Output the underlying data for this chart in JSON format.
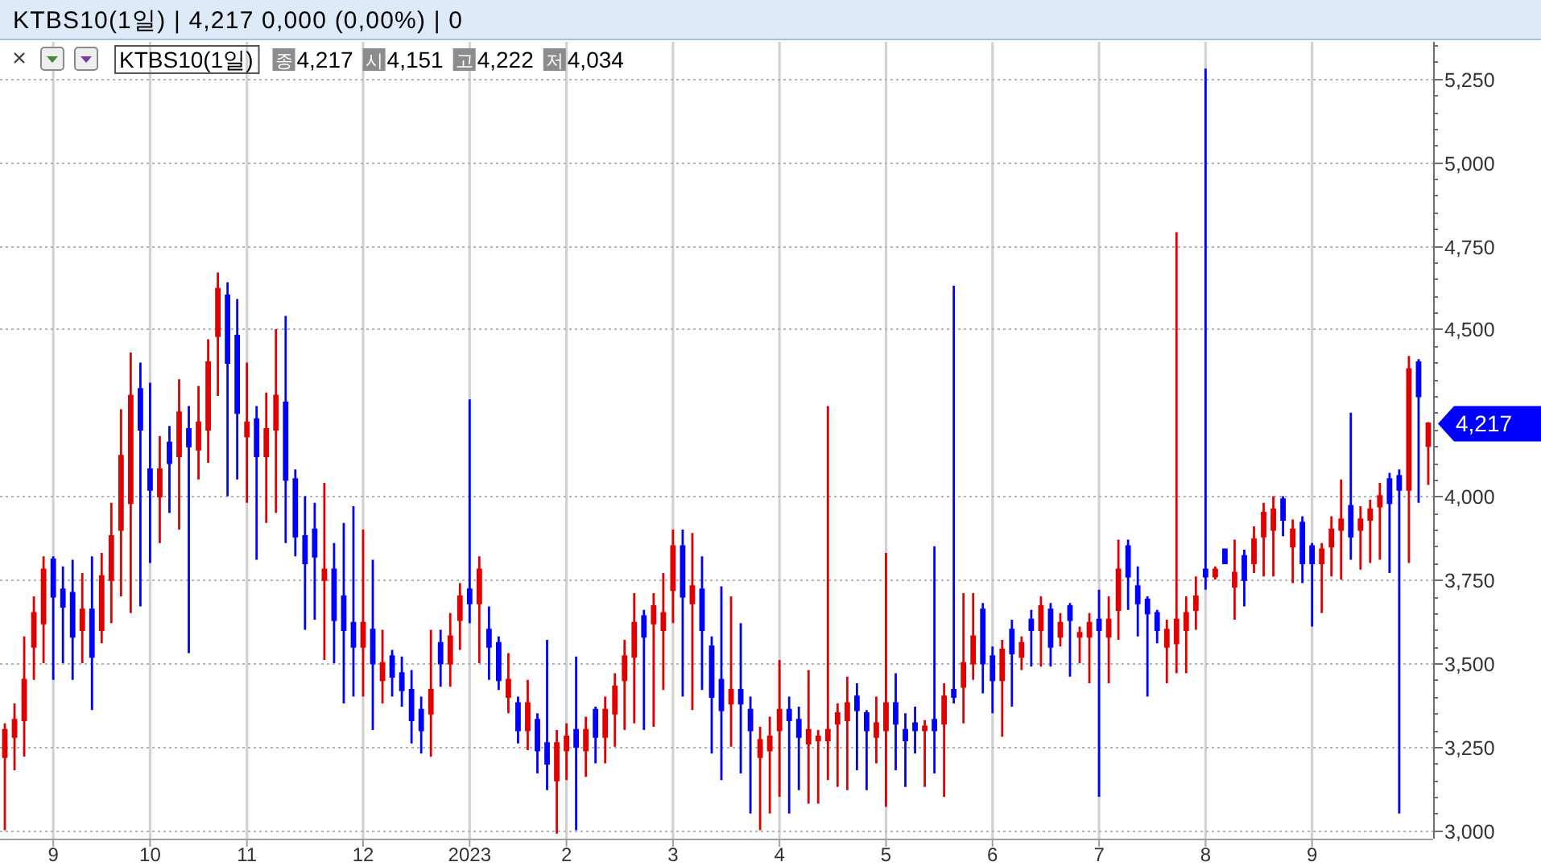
{
  "chart_data": {
    "type": "candlestick",
    "title": "KTBS10(1일) | 4,217 0,000 (0,00%) | 0",
    "categories": [
      null,
      null,
      null,
      null,
      null,
      "9",
      null,
      null,
      null,
      null,
      null,
      null,
      null,
      null,
      null,
      "10",
      null,
      null,
      null,
      null,
      null,
      null,
      null,
      null,
      null,
      "11",
      null,
      null,
      null,
      null,
      null,
      null,
      null,
      null,
      null,
      null,
      null,
      "12",
      null,
      null,
      null,
      null,
      null,
      null,
      null,
      null,
      null,
      null,
      "2023",
      null,
      null,
      null,
      null,
      null,
      null,
      null,
      null,
      null,
      "2",
      null,
      null,
      null,
      null,
      null,
      null,
      null,
      null,
      null,
      null,
      "3",
      null,
      null,
      null,
      null,
      null,
      null,
      null,
      null,
      null,
      null,
      "4",
      null,
      null,
      null,
      null,
      null,
      null,
      null,
      null,
      null,
      null,
      "5",
      null,
      null,
      null,
      null,
      null,
      null,
      null,
      null,
      null,
      null,
      "6",
      null,
      null,
      null,
      null,
      null,
      null,
      null,
      null,
      null,
      null,
      "7",
      null,
      null,
      null,
      null,
      null,
      null,
      null,
      null,
      null,
      null,
      "8",
      null,
      null,
      null,
      null,
      null,
      null,
      null,
      null,
      null,
      null,
      "9",
      null,
      null,
      null,
      null,
      null,
      null,
      null,
      null,
      null,
      null,
      null,
      null
    ],
    "series": [
      {
        "name": "KTBS10(1일)",
        "ohlc": [
          [
            3220,
            3320,
            3000,
            3300
          ],
          [
            3280,
            3380,
            3180,
            3330
          ],
          [
            3330,
            3580,
            3220,
            3450
          ],
          [
            3550,
            3700,
            3450,
            3650
          ],
          [
            3620,
            3820,
            3500,
            3780
          ],
          [
            3810,
            3820,
            3450,
            3700
          ],
          [
            3720,
            3790,
            3500,
            3670
          ],
          [
            3710,
            3810,
            3450,
            3580
          ],
          [
            3600,
            3770,
            3500,
            3660
          ],
          [
            3660,
            3820,
            3360,
            3520
          ],
          [
            3600,
            3830,
            3560,
            3760
          ],
          [
            3750,
            3980,
            3620,
            3880
          ],
          [
            3900,
            4260,
            3700,
            4120
          ],
          [
            3980,
            4430,
            3650,
            4300
          ],
          [
            4320,
            4400,
            3670,
            4200
          ],
          [
            4080,
            4340,
            3800,
            4020
          ],
          [
            4000,
            4180,
            3860,
            4080
          ],
          [
            4160,
            4210,
            3950,
            4100
          ],
          [
            4120,
            4350,
            3900,
            4250
          ],
          [
            4200,
            4270,
            3530,
            4150
          ],
          [
            4140,
            4330,
            4050,
            4220
          ],
          [
            4200,
            4470,
            4100,
            4400
          ],
          [
            4480,
            4670,
            4300,
            4620
          ],
          [
            4600,
            4640,
            4000,
            4400
          ],
          [
            4480,
            4590,
            4050,
            4250
          ],
          [
            4180,
            4400,
            3980,
            4220
          ],
          [
            4230,
            4270,
            3810,
            4120
          ],
          [
            4120,
            4310,
            3920,
            4200
          ],
          [
            4200,
            4500,
            3950,
            4300
          ],
          [
            4280,
            4540,
            3860,
            4050
          ],
          [
            4050,
            4080,
            3820,
            3880
          ],
          [
            3880,
            4000,
            3600,
            3800
          ],
          [
            3900,
            3980,
            3630,
            3820
          ],
          [
            3750,
            4040,
            3510,
            3780
          ],
          [
            3780,
            3860,
            3500,
            3630
          ],
          [
            3700,
            3920,
            3380,
            3600
          ],
          [
            3620,
            3970,
            3400,
            3550
          ],
          [
            3550,
            3900,
            3400,
            3620
          ],
          [
            3600,
            3810,
            3300,
            3500
          ],
          [
            3450,
            3600,
            3380,
            3500
          ],
          [
            3520,
            3540,
            3400,
            3460
          ],
          [
            3470,
            3520,
            3370,
            3420
          ],
          [
            3420,
            3480,
            3260,
            3330
          ],
          [
            3360,
            3400,
            3230,
            3300
          ],
          [
            3350,
            3600,
            3220,
            3420
          ],
          [
            3560,
            3600,
            3430,
            3500
          ],
          [
            3500,
            3650,
            3430,
            3580
          ],
          [
            3630,
            3740,
            3540,
            3700
          ],
          [
            3720,
            4290,
            3620,
            3680
          ],
          [
            3680,
            3820,
            3500,
            3780
          ],
          [
            3600,
            3670,
            3450,
            3550
          ],
          [
            3560,
            3580,
            3420,
            3450
          ],
          [
            3400,
            3530,
            3350,
            3450
          ],
          [
            3380,
            3400,
            3260,
            3300
          ],
          [
            3300,
            3450,
            3240,
            3380
          ],
          [
            3330,
            3350,
            3170,
            3240
          ],
          [
            3260,
            3570,
            3120,
            3200
          ],
          [
            3150,
            3300,
            2990,
            3260
          ],
          [
            3240,
            3320,
            3150,
            3280
          ],
          [
            3300,
            3520,
            3000,
            3250
          ],
          [
            3240,
            3340,
            3160,
            3300
          ],
          [
            3360,
            3370,
            3200,
            3280
          ],
          [
            3280,
            3400,
            3200,
            3360
          ],
          [
            3350,
            3470,
            3250,
            3430
          ],
          [
            3450,
            3570,
            3300,
            3520
          ],
          [
            3520,
            3710,
            3320,
            3620
          ],
          [
            3640,
            3660,
            3300,
            3580
          ],
          [
            3620,
            3710,
            3310,
            3670
          ],
          [
            3600,
            3770,
            3420,
            3650
          ],
          [
            3720,
            3900,
            3620,
            3850
          ],
          [
            3850,
            3900,
            3400,
            3700
          ],
          [
            3680,
            3890,
            3360,
            3730
          ],
          [
            3720,
            3820,
            3420,
            3600
          ],
          [
            3550,
            3580,
            3230,
            3400
          ],
          [
            3450,
            3730,
            3150,
            3360
          ],
          [
            3380,
            3700,
            3250,
            3420
          ],
          [
            3420,
            3620,
            3170,
            3380
          ],
          [
            3360,
            3400,
            3050,
            3300
          ],
          [
            3220,
            3310,
            3000,
            3270
          ],
          [
            3240,
            3340,
            3050,
            3280
          ],
          [
            3300,
            3510,
            3100,
            3360
          ],
          [
            3360,
            3400,
            3050,
            3330
          ],
          [
            3330,
            3370,
            3120,
            3280
          ],
          [
            3260,
            3480,
            3080,
            3300
          ],
          [
            3270,
            3300,
            3080,
            3280
          ],
          [
            3270,
            4270,
            3150,
            3300
          ],
          [
            3320,
            3380,
            3130,
            3350
          ],
          [
            3330,
            3460,
            3120,
            3380
          ],
          [
            3400,
            3440,
            3180,
            3360
          ],
          [
            3350,
            3360,
            3120,
            3300
          ],
          [
            3280,
            3400,
            3200,
            3320
          ],
          [
            3300,
            3830,
            3070,
            3380
          ],
          [
            3380,
            3470,
            3180,
            3320
          ],
          [
            3300,
            3350,
            3130,
            3270
          ],
          [
            3320,
            3370,
            3230,
            3300
          ],
          [
            3300,
            3330,
            3130,
            3310
          ],
          [
            3330,
            3850,
            3170,
            3300
          ],
          [
            3320,
            3440,
            3100,
            3400
          ],
          [
            3420,
            4630,
            3380,
            3400
          ],
          [
            3430,
            3710,
            3320,
            3500
          ],
          [
            3500,
            3710,
            3450,
            3580
          ],
          [
            3660,
            3680,
            3410,
            3500
          ],
          [
            3520,
            3550,
            3350,
            3450
          ],
          [
            3450,
            3570,
            3280,
            3540
          ],
          [
            3600,
            3630,
            3370,
            3530
          ],
          [
            3520,
            3580,
            3480,
            3560
          ],
          [
            3630,
            3660,
            3490,
            3600
          ],
          [
            3600,
            3700,
            3490,
            3670
          ],
          [
            3660,
            3680,
            3490,
            3550
          ],
          [
            3580,
            3650,
            3550,
            3620
          ],
          [
            3670,
            3680,
            3460,
            3630
          ],
          [
            3580,
            3610,
            3500,
            3590
          ],
          [
            3580,
            3650,
            3440,
            3620
          ],
          [
            3630,
            3720,
            3100,
            3600
          ],
          [
            3580,
            3700,
            3440,
            3630
          ],
          [
            3660,
            3870,
            3570,
            3780
          ],
          [
            3850,
            3870,
            3660,
            3760
          ],
          [
            3730,
            3790,
            3580,
            3680
          ],
          [
            3690,
            3700,
            3400,
            3650
          ],
          [
            3650,
            3660,
            3560,
            3600
          ],
          [
            3550,
            3630,
            3440,
            3600
          ],
          [
            3560,
            4790,
            3470,
            3630
          ],
          [
            3600,
            3700,
            3470,
            3650
          ],
          [
            3660,
            3760,
            3600,
            3700
          ],
          [
            3780,
            5280,
            3720,
            3760
          ],
          [
            3760,
            3790,
            3750,
            3780
          ],
          [
            3840,
            3840,
            3800,
            3800
          ],
          [
            3730,
            3870,
            3630,
            3770
          ],
          [
            3820,
            3840,
            3670,
            3750
          ],
          [
            3800,
            3910,
            3770,
            3870
          ],
          [
            3880,
            3980,
            3760,
            3950
          ],
          [
            3900,
            4000,
            3760,
            3960
          ],
          [
            3990,
            4000,
            3880,
            3930
          ],
          [
            3850,
            3930,
            3740,
            3900
          ],
          [
            3920,
            3940,
            3740,
            3800
          ],
          [
            3850,
            3860,
            3610,
            3800
          ],
          [
            3800,
            3860,
            3650,
            3840
          ],
          [
            3850,
            3940,
            3760,
            3900
          ],
          [
            3900,
            4050,
            3750,
            3930
          ],
          [
            3970,
            4250,
            3810,
            3880
          ],
          [
            3900,
            3970,
            3780,
            3930
          ],
          [
            3930,
            3990,
            3800,
            3960
          ],
          [
            3970,
            4040,
            3810,
            4000
          ],
          [
            4050,
            4070,
            3770,
            3980
          ],
          [
            4060,
            4080,
            3050,
            4020
          ],
          [
            4020,
            4420,
            3800,
            4380
          ],
          [
            4400,
            4410,
            3980,
            4300
          ],
          [
            4151,
            4222,
            4034,
            4217
          ]
        ],
        "colors": [
          "#e00000",
          "#e00000",
          "#e00000",
          "#e00000",
          "#e00000",
          "#0000ff",
          "#0000ff",
          "#0000ff",
          "#e00000",
          "#0000ff",
          "#e00000",
          "#e00000",
          "#e00000",
          "#e00000",
          "#0000ff",
          "#0000ff",
          "#e00000",
          "#0000ff",
          "#e00000",
          "#0000ff",
          "#e00000",
          "#e00000",
          "#e00000",
          "#0000ff",
          "#0000ff",
          "#e00000",
          "#0000ff",
          "#e00000",
          "#e00000",
          "#0000ff",
          "#0000ff",
          "#0000ff",
          "#0000ff",
          "#e00000",
          "#0000ff",
          "#0000ff",
          "#0000ff",
          "#e00000",
          "#0000ff",
          "#e00000",
          "#0000ff",
          "#0000ff",
          "#0000ff",
          "#0000ff",
          "#e00000",
          "#0000ff",
          "#e00000",
          "#e00000",
          "#0000ff",
          "#e00000",
          "#0000ff",
          "#0000ff",
          "#e00000",
          "#0000ff",
          "#e00000",
          "#0000ff",
          "#0000ff",
          "#e00000",
          "#e00000",
          "#0000ff",
          "#e00000",
          "#0000ff",
          "#e00000",
          "#e00000",
          "#e00000",
          "#e00000",
          "#0000ff",
          "#e00000",
          "#e00000",
          "#e00000",
          "#0000ff",
          "#e00000",
          "#0000ff",
          "#0000ff",
          "#0000ff",
          "#e00000",
          "#0000ff",
          "#0000ff",
          "#e00000",
          "#e00000",
          "#e00000",
          "#0000ff",
          "#0000ff",
          "#e00000",
          "#e00000",
          "#e00000",
          "#e00000",
          "#e00000",
          "#0000ff",
          "#0000ff",
          "#e00000",
          "#e00000",
          "#0000ff",
          "#0000ff",
          "#0000ff",
          "#e00000",
          "#0000ff",
          "#e00000",
          "#0000ff",
          "#e00000",
          "#e00000",
          "#0000ff",
          "#0000ff",
          "#e00000",
          "#0000ff",
          "#e00000",
          "#0000ff",
          "#e00000",
          "#0000ff",
          "#e00000",
          "#0000ff",
          "#e00000",
          "#e00000",
          "#0000ff",
          "#e00000",
          "#e00000",
          "#0000ff",
          "#0000ff",
          "#0000ff",
          "#0000ff",
          "#e00000",
          "#e00000",
          "#e00000",
          "#e00000",
          "#0000ff",
          "#e00000",
          "#0000ff",
          "#e00000",
          "#0000ff",
          "#e00000",
          "#e00000",
          "#e00000",
          "#0000ff",
          "#e00000",
          "#0000ff",
          "#0000ff",
          "#e00000",
          "#e00000",
          "#e00000",
          "#0000ff",
          "#e00000",
          "#e00000",
          "#e00000",
          "#0000ff",
          "#0000ff",
          "#e00000",
          "#0000ff",
          "#e00000"
        ]
      }
    ],
    "ylim": [
      2975,
      5360
    ],
    "yticks": [
      {
        "value": 3000,
        "label": "3,000"
      },
      {
        "value": 3050,
        "label": null
      },
      {
        "value": 3100,
        "label": null
      },
      {
        "value": 3150,
        "label": null
      },
      {
        "value": 3200,
        "label": null
      },
      {
        "value": 3250,
        "label": "3,250"
      },
      {
        "value": 3300,
        "label": null
      },
      {
        "value": 3350,
        "label": null
      },
      {
        "value": 3400,
        "label": null
      },
      {
        "value": 3450,
        "label": null
      },
      {
        "value": 3500,
        "label": "3,500"
      },
      {
        "value": 3550,
        "label": null
      },
      {
        "value": 3600,
        "label": null
      },
      {
        "value": 3650,
        "label": null
      },
      {
        "value": 3700,
        "label": null
      },
      {
        "value": 3750,
        "label": "3,750"
      },
      {
        "value": 3800,
        "label": null
      },
      {
        "value": 3850,
        "label": null
      },
      {
        "value": 3900,
        "label": null
      },
      {
        "value": 3950,
        "label": null
      },
      {
        "value": 4000,
        "label": "4,000"
      },
      {
        "value": 4050,
        "label": null
      },
      {
        "value": 4100,
        "label": null
      },
      {
        "value": 4150,
        "label": null
      },
      {
        "value": 4200,
        "label": null
      },
      {
        "value": 4250,
        "label": null
      },
      {
        "value": 4300,
        "label": null
      },
      {
        "value": 4350,
        "label": null
      },
      {
        "value": 4400,
        "label": null
      },
      {
        "value": 4450,
        "label": null
      },
      {
        "value": 4500,
        "label": "4,500"
      },
      {
        "value": 4550,
        "label": null
      },
      {
        "value": 4600,
        "label": null
      },
      {
        "value": 4650,
        "label": null
      },
      {
        "value": 4700,
        "label": null
      },
      {
        "value": 4750,
        "label": "4,750"
      },
      {
        "value": 4800,
        "label": null
      },
      {
        "value": 4850,
        "label": null
      },
      {
        "value": 4900,
        "label": null
      },
      {
        "value": 4950,
        "label": null
      },
      {
        "value": 5000,
        "label": "5,000"
      },
      {
        "value": 5050,
        "label": null
      },
      {
        "value": 5100,
        "label": null
      },
      {
        "value": 5150,
        "label": null
      },
      {
        "value": 5200,
        "label": null
      },
      {
        "value": 5250,
        "label": "5,250"
      },
      {
        "value": 5300,
        "label": null
      },
      {
        "value": 5350,
        "label": null
      }
    ],
    "grid": true,
    "legend": "top left",
    "annotations": [
      "종",
      "4,217",
      "시",
      "4,151",
      "고",
      "4,222",
      "저",
      "4,034",
      "4,217"
    ]
  }
}
